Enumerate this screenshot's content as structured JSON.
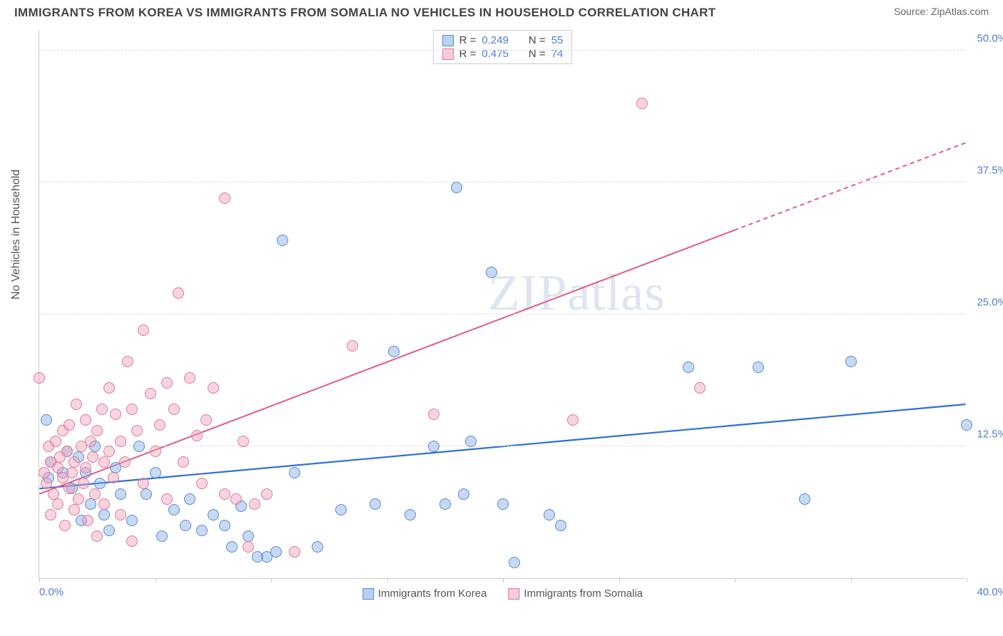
{
  "title": "IMMIGRANTS FROM KOREA VS IMMIGRANTS FROM SOMALIA NO VEHICLES IN HOUSEHOLD CORRELATION CHART",
  "source_label": "Source: ",
  "source_name": "ZipAtlas.com",
  "watermark": "ZIPatlas",
  "ylabel": "No Vehicles in Household",
  "chart": {
    "type": "scatter",
    "xlim": [
      0,
      40
    ],
    "ylim": [
      0,
      52
    ],
    "y_ticks": [
      12.5,
      25.0,
      37.5,
      50.0
    ],
    "y_tick_labels": [
      "12.5%",
      "25.0%",
      "37.5%",
      "50.0%"
    ],
    "x_ticks": [
      0,
      5,
      10,
      15,
      20,
      25,
      30,
      35,
      40
    ],
    "x_min_label": "0.0%",
    "x_max_label": "40.0%",
    "background_color": "#ffffff",
    "grid_color": "#dddddd",
    "axis_color": "#cccccc",
    "tick_label_color": "#4a7fd8",
    "marker_radius": 8,
    "marker_opacity": 0.55,
    "series": [
      {
        "name": "Immigrants from Korea",
        "color": "#6699e0",
        "fill": "rgba(130,170,230,0.45)",
        "stroke": "#5a8ad0",
        "R": "0.249",
        "N": "55",
        "trend": {
          "x1": 0,
          "y1": 8.5,
          "x2": 40,
          "y2": 16.5,
          "color": "#2e6fd6",
          "width": 2.2,
          "dash_after_x": 40
        },
        "points": [
          [
            0.3,
            15.0
          ],
          [
            0.4,
            9.5
          ],
          [
            0.5,
            11.0
          ],
          [
            1.0,
            10.0
          ],
          [
            1.2,
            12.0
          ],
          [
            1.4,
            8.5
          ],
          [
            1.7,
            11.5
          ],
          [
            1.8,
            5.5
          ],
          [
            2.0,
            10.0
          ],
          [
            2.2,
            7.0
          ],
          [
            2.4,
            12.5
          ],
          [
            2.6,
            9.0
          ],
          [
            2.8,
            6.0
          ],
          [
            3.0,
            4.5
          ],
          [
            3.3,
            10.5
          ],
          [
            3.5,
            8.0
          ],
          [
            4.0,
            5.5
          ],
          [
            4.3,
            12.5
          ],
          [
            4.6,
            8.0
          ],
          [
            5.0,
            10.0
          ],
          [
            5.3,
            4.0
          ],
          [
            5.8,
            6.5
          ],
          [
            6.3,
            5.0
          ],
          [
            6.5,
            7.5
          ],
          [
            7.0,
            4.5
          ],
          [
            7.5,
            6.0
          ],
          [
            8.0,
            5.0
          ],
          [
            8.3,
            3.0
          ],
          [
            8.7,
            6.8
          ],
          [
            9.0,
            4.0
          ],
          [
            9.4,
            2.0
          ],
          [
            9.8,
            2.0
          ],
          [
            10.2,
            2.5
          ],
          [
            10.5,
            32.0
          ],
          [
            11.0,
            10.0
          ],
          [
            12.0,
            3.0
          ],
          [
            13.0,
            6.5
          ],
          [
            14.5,
            7.0
          ],
          [
            15.3,
            21.5
          ],
          [
            16.0,
            6.0
          ],
          [
            17.0,
            12.5
          ],
          [
            17.5,
            7.0
          ],
          [
            18.0,
            37.0
          ],
          [
            18.3,
            8.0
          ],
          [
            18.6,
            13.0
          ],
          [
            19.5,
            29.0
          ],
          [
            20.0,
            7.0
          ],
          [
            20.5,
            1.5
          ],
          [
            22.0,
            6.0
          ],
          [
            22.5,
            5.0
          ],
          [
            28.0,
            20.0
          ],
          [
            31.0,
            20.0
          ],
          [
            33.0,
            7.5
          ],
          [
            35.0,
            20.5
          ],
          [
            40.0,
            14.5
          ]
        ]
      },
      {
        "name": "Immigrants from Somalia",
        "color": "#e78fa8",
        "fill": "rgba(240,160,185,0.45)",
        "stroke": "#e07a98",
        "R": "0.475",
        "N": "74",
        "trend": {
          "x1": 0,
          "y1": 8.0,
          "x2": 30,
          "y2": 33.0,
          "x2_dash": 40,
          "y2_dash": 41.3,
          "color": "#e35a82",
          "width": 2.0
        },
        "points": [
          [
            0.0,
            19.0
          ],
          [
            0.2,
            10.0
          ],
          [
            0.3,
            9.0
          ],
          [
            0.4,
            12.5
          ],
          [
            0.5,
            11.0
          ],
          [
            0.5,
            6.0
          ],
          [
            0.6,
            8.0
          ],
          [
            0.7,
            13.0
          ],
          [
            0.8,
            10.5
          ],
          [
            0.8,
            7.0
          ],
          [
            0.9,
            11.5
          ],
          [
            1.0,
            9.5
          ],
          [
            1.0,
            14.0
          ],
          [
            1.1,
            5.0
          ],
          [
            1.2,
            12.0
          ],
          [
            1.3,
            8.5
          ],
          [
            1.3,
            14.5
          ],
          [
            1.4,
            10.0
          ],
          [
            1.5,
            6.5
          ],
          [
            1.5,
            11.0
          ],
          [
            1.6,
            16.5
          ],
          [
            1.7,
            7.5
          ],
          [
            1.8,
            12.5
          ],
          [
            1.9,
            9.0
          ],
          [
            2.0,
            15.0
          ],
          [
            2.0,
            10.5
          ],
          [
            2.1,
            5.5
          ],
          [
            2.2,
            13.0
          ],
          [
            2.3,
            11.5
          ],
          [
            2.4,
            8.0
          ],
          [
            2.5,
            14.0
          ],
          [
            2.5,
            4.0
          ],
          [
            2.7,
            16.0
          ],
          [
            2.8,
            7.0
          ],
          [
            2.8,
            11.0
          ],
          [
            3.0,
            18.0
          ],
          [
            3.0,
            12.0
          ],
          [
            3.2,
            9.5
          ],
          [
            3.3,
            15.5
          ],
          [
            3.5,
            6.0
          ],
          [
            3.5,
            13.0
          ],
          [
            3.7,
            11.0
          ],
          [
            3.8,
            20.5
          ],
          [
            4.0,
            16.0
          ],
          [
            4.0,
            3.5
          ],
          [
            4.2,
            14.0
          ],
          [
            4.5,
            9.0
          ],
          [
            4.5,
            23.5
          ],
          [
            4.8,
            17.5
          ],
          [
            5.0,
            12.0
          ],
          [
            5.2,
            14.5
          ],
          [
            5.5,
            18.5
          ],
          [
            5.5,
            7.5
          ],
          [
            5.8,
            16.0
          ],
          [
            6.0,
            27.0
          ],
          [
            6.2,
            11.0
          ],
          [
            6.5,
            19.0
          ],
          [
            6.8,
            13.5
          ],
          [
            7.0,
            9.0
          ],
          [
            7.2,
            15.0
          ],
          [
            7.5,
            18.0
          ],
          [
            8.0,
            8.0
          ],
          [
            8.0,
            36.0
          ],
          [
            8.5,
            7.5
          ],
          [
            8.8,
            13.0
          ],
          [
            9.0,
            3.0
          ],
          [
            9.3,
            7.0
          ],
          [
            9.8,
            8.0
          ],
          [
            11.0,
            2.5
          ],
          [
            13.5,
            22.0
          ],
          [
            17.0,
            15.5
          ],
          [
            23.0,
            15.0
          ],
          [
            26.0,
            45.0
          ],
          [
            28.5,
            18.0
          ]
        ]
      }
    ]
  },
  "legend": {
    "items": [
      {
        "label": "Immigrants from Korea",
        "fill": "rgba(130,170,230,0.55)",
        "border": "#5a8ad0"
      },
      {
        "label": "Immigrants from Somalia",
        "fill": "rgba(240,160,185,0.55)",
        "border": "#e07a98"
      }
    ]
  },
  "stats_labels": {
    "R": "R =",
    "N": "N ="
  }
}
